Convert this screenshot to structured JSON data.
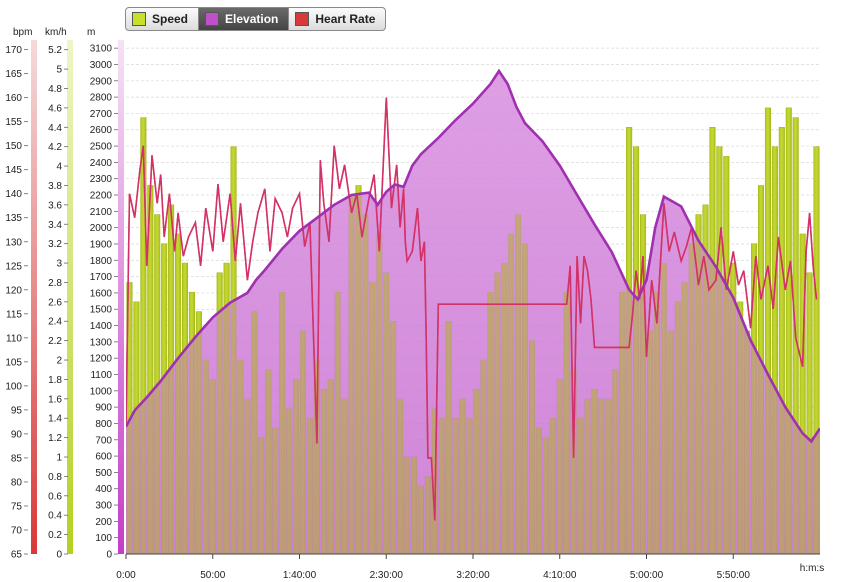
{
  "legend": [
    {
      "label": "Speed",
      "color": "#c8e02a",
      "active": false
    },
    {
      "label": "Elevation",
      "color": "#c050c8",
      "active": true
    },
    {
      "label": "Heart Rate",
      "color": "#d83a3a",
      "active": false
    }
  ],
  "chart_data": {
    "type": "line",
    "xlabel": "h:m:s",
    "x_ticks": [
      "0:00",
      "50:00",
      "1:40:00",
      "2:30:00",
      "3:20:00",
      "4:10:00",
      "5:00:00",
      "5:50:00"
    ],
    "x_tick_minutes": [
      0,
      50,
      100,
      150,
      200,
      250,
      300,
      350
    ],
    "xlim_minutes": [
      0,
      400
    ],
    "grid": true,
    "axes": [
      {
        "unit": "bpm",
        "series": "Heart Rate",
        "min": 65,
        "max": 172,
        "step": 5,
        "color": "#d83a3a"
      },
      {
        "unit": "km/h",
        "series": "Speed",
        "min": 0,
        "max": 5.3,
        "step": 0.2,
        "color": "#c8e02a"
      },
      {
        "unit": "m",
        "series": "Elevation",
        "min": 0,
        "max": 3150,
        "step": 100,
        "color": "#c050c8"
      }
    ],
    "series": [
      {
        "name": "Elevation",
        "unit": "m",
        "color": "#b040c0",
        "x": [
          0,
          5,
          12,
          20,
          30,
          40,
          50,
          60,
          70,
          75,
          80,
          90,
          100,
          110,
          120,
          130,
          140,
          145,
          150,
          155,
          160,
          165,
          170,
          180,
          190,
          200,
          210,
          215,
          220,
          225,
          230,
          240,
          250,
          260,
          270,
          280,
          290,
          295,
          300,
          305,
          310,
          320,
          330,
          340,
          350,
          360,
          370,
          380,
          390,
          395,
          400
        ],
        "values": [
          780,
          880,
          960,
          1060,
          1200,
          1330,
          1450,
          1540,
          1600,
          1680,
          1740,
          1870,
          1980,
          2060,
          2140,
          2200,
          2215,
          2140,
          2220,
          2265,
          2250,
          2380,
          2450,
          2550,
          2660,
          2760,
          2880,
          2960,
          2880,
          2740,
          2640,
          2530,
          2380,
          2200,
          2020,
          1850,
          1620,
          1560,
          1680,
          2000,
          2190,
          2130,
          1920,
          1760,
          1570,
          1310,
          1100,
          900,
          740,
          690,
          770
        ]
      },
      {
        "name": "Speed",
        "unit": "km/h",
        "color": "#c8e02a",
        "x": [
          2,
          6,
          10,
          14,
          18,
          22,
          26,
          30,
          34,
          38,
          42,
          46,
          50,
          54,
          58,
          62,
          66,
          70,
          74,
          78,
          82,
          86,
          90,
          94,
          98,
          102,
          106,
          110,
          114,
          118,
          122,
          126,
          130,
          134,
          138,
          142,
          146,
          150,
          154,
          158,
          162,
          166,
          170,
          174,
          178,
          182,
          186,
          190,
          194,
          198,
          202,
          206,
          210,
          214,
          218,
          222,
          226,
          230,
          234,
          238,
          242,
          246,
          250,
          254,
          258,
          262,
          266,
          270,
          274,
          278,
          282,
          286,
          290,
          294,
          298,
          302,
          306,
          310,
          314,
          318,
          322,
          326,
          330,
          334,
          338,
          342,
          346,
          350,
          354,
          358,
          362,
          366,
          370,
          374,
          378,
          382,
          386,
          390,
          394,
          398
        ],
        "values": [
          2.8,
          2.6,
          4.5,
          3.8,
          3.5,
          3.2,
          3.6,
          3.3,
          3.0,
          2.7,
          2.5,
          2.0,
          1.8,
          2.9,
          3.0,
          4.2,
          2.0,
          1.6,
          2.5,
          1.2,
          1.9,
          1.3,
          2.7,
          1.5,
          1.8,
          2.3,
          1.4,
          2.0,
          1.7,
          1.8,
          2.7,
          1.6,
          3.7,
          3.8,
          3.5,
          2.8,
          3.3,
          2.9,
          2.4,
          1.6,
          1.0,
          1.0,
          0.7,
          0.8,
          1.5,
          1.4,
          2.4,
          1.4,
          1.6,
          1.4,
          1.7,
          2.0,
          2.7,
          2.9,
          3.0,
          3.3,
          3.5,
          3.2,
          2.2,
          1.3,
          1.2,
          1.4,
          1.8,
          2.7,
          1.9,
          1.4,
          1.6,
          1.7,
          1.6,
          1.6,
          1.9,
          2.7,
          4.4,
          4.2,
          3.5,
          2.3,
          2.7,
          3.0,
          2.3,
          2.6,
          2.8,
          3.2,
          3.5,
          3.6,
          4.4,
          4.2,
          4.1,
          3.0,
          2.6,
          2.3,
          3.2,
          3.8,
          4.6,
          4.2,
          4.4,
          4.6,
          4.5,
          3.3,
          2.9,
          4.2
        ]
      },
      {
        "name": "Heart Rate",
        "unit": "bpm",
        "color": "#d83a3a",
        "x": [
          0,
          2,
          5,
          8,
          10,
          12,
          15,
          18,
          20,
          22,
          25,
          28,
          30,
          33,
          36,
          40,
          43,
          46,
          50,
          53,
          56,
          60,
          63,
          66,
          70,
          73,
          76,
          80,
          83,
          86,
          90,
          93,
          96,
          100,
          103,
          106,
          110,
          112,
          114,
          117,
          120,
          123,
          126,
          130,
          133,
          136,
          140,
          143,
          146,
          150,
          153,
          156,
          158,
          160,
          161,
          162,
          165,
          168,
          170,
          172,
          173,
          174,
          176,
          178,
          180,
          184,
          188,
          192,
          196,
          200,
          204,
          208,
          212,
          216,
          220,
          224,
          228,
          232,
          236,
          240,
          244,
          248,
          250,
          252,
          253,
          254,
          256,
          258,
          260,
          262,
          264,
          266,
          268,
          270,
          272,
          274,
          276,
          278,
          280,
          282,
          284,
          286,
          288,
          290,
          292,
          294,
          296,
          298,
          300,
          303,
          306,
          310,
          313,
          316,
          320,
          323,
          326,
          330,
          333,
          336,
          340,
          343,
          346,
          350,
          353,
          356,
          360,
          363,
          366,
          370,
          373,
          376,
          380,
          383,
          386,
          390,
          392,
          394,
          396,
          398
        ],
        "values": [
          92,
          140,
          135,
          145,
          150,
          125,
          148,
          138,
          144,
          131,
          140,
          128,
          136,
          127,
          131,
          134,
          125,
          137,
          128,
          142,
          130,
          140,
          126,
          138,
          122,
          130,
          136,
          141,
          128,
          139,
          136,
          131,
          137,
          140,
          129,
          134,
          88,
          147,
          138,
          130,
          150,
          141,
          146,
          136,
          140,
          131,
          139,
          144,
          128,
          160,
          137,
          146,
          133,
          141,
          130,
          126,
          128,
          137,
          126,
          130,
          110,
          85,
          85,
          72,
          117,
          117,
          117,
          117,
          117,
          117,
          117,
          117,
          117,
          117,
          117,
          117,
          117,
          117,
          117,
          117,
          117,
          117,
          117,
          117,
          117,
          117,
          125,
          85,
          127,
          113,
          127,
          124,
          118,
          108,
          108,
          108,
          108,
          108,
          108,
          108,
          108,
          108,
          108,
          108,
          115,
          124,
          118,
          127,
          106,
          122,
          113,
          138,
          128,
          132,
          126,
          129,
          133,
          121,
          127,
          120,
          122,
          133,
          120,
          128,
          121,
          124,
          112,
          127,
          118,
          125,
          116,
          131,
          120,
          126,
          110,
          104,
          128,
          136,
          125,
          118
        ]
      }
    ]
  }
}
